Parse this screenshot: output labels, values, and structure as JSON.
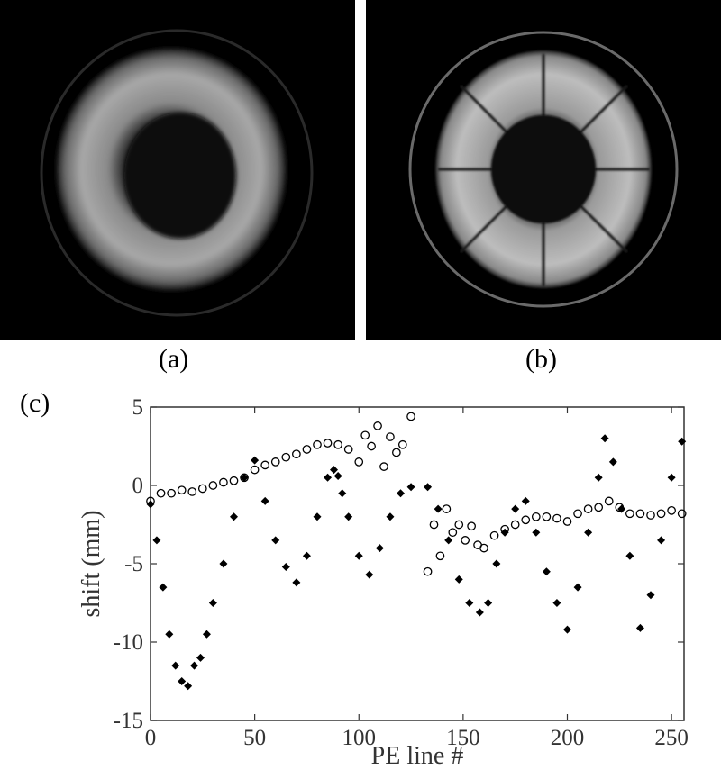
{
  "captions": {
    "a": "(a)",
    "b": "(b)",
    "c": "(c)"
  },
  "images": [
    {
      "label": "(a)",
      "description_icon": "blurred-mri-orange-cross-section-icon"
    },
    {
      "label": "(b)",
      "description_icon": "corrected-mri-orange-cross-section-icon"
    }
  ],
  "chart_data": {
    "type": "scatter",
    "title": "",
    "xlabel": "PE line #",
    "ylabel": "shift (mm)",
    "xlim": [
      0,
      256
    ],
    "ylim": [
      -15,
      5
    ],
    "xticks": [
      0,
      50,
      100,
      150,
      200,
      250
    ],
    "yticks": [
      -15,
      -10,
      -5,
      0,
      5
    ],
    "grid": false,
    "legend": "none",
    "series": [
      {
        "marker": "filled-diamond",
        "color": "#000000",
        "x": [
          0,
          3,
          6,
          9,
          12,
          15,
          18,
          21,
          24,
          27,
          30,
          35,
          40,
          45,
          50,
          55,
          60,
          65,
          70,
          75,
          80,
          85,
          88,
          90,
          92,
          95,
          100,
          105,
          110,
          115,
          120,
          125,
          133,
          138,
          143,
          148,
          153,
          158,
          162,
          166,
          170,
          175,
          180,
          185,
          190,
          195,
          200,
          205,
          210,
          215,
          218,
          222,
          226,
          230,
          235,
          240,
          245,
          250,
          255
        ],
        "y": [
          -1.2,
          -3.5,
          -6.5,
          -9.5,
          -11.5,
          -12.5,
          -12.8,
          -11.5,
          -11,
          -9.5,
          -7.5,
          -5,
          -2,
          0.5,
          1.6,
          -1,
          -3.5,
          -5.2,
          -6.2,
          -4.5,
          -2,
          0.5,
          1.0,
          0.6,
          -0.5,
          -2,
          -4.5,
          -5.7,
          -4,
          -2,
          -0.5,
          -0.1,
          -0.1,
          -1.5,
          -3.5,
          -6,
          -7.5,
          -8.1,
          -7.5,
          -5,
          -3,
          -1.5,
          -1.0,
          -3,
          -5.5,
          -7.5,
          -9.2,
          -6.5,
          -3,
          0.5,
          3.0,
          1.5,
          -1.5,
          -4.5,
          -9.1,
          -7,
          -3.5,
          0.5,
          2.8
        ]
      },
      {
        "marker": "open-circle",
        "color": "#000000",
        "x": [
          0,
          5,
          10,
          15,
          20,
          25,
          30,
          35,
          40,
          45,
          50,
          55,
          60,
          65,
          70,
          75,
          80,
          85,
          90,
          95,
          100,
          103,
          106,
          109,
          112,
          115,
          118,
          121,
          125,
          133,
          136,
          139,
          142,
          145,
          148,
          151,
          154,
          157,
          160,
          165,
          170,
          175,
          180,
          185,
          190,
          195,
          200,
          205,
          210,
          215,
          220,
          225,
          230,
          235,
          240,
          245,
          250,
          255
        ],
        "y": [
          -1.0,
          -0.5,
          -0.5,
          -0.3,
          -0.4,
          -0.2,
          0.0,
          0.2,
          0.3,
          0.5,
          1.0,
          1.3,
          1.5,
          1.8,
          2.0,
          2.3,
          2.6,
          2.7,
          2.6,
          2.3,
          1.5,
          3.2,
          2.5,
          3.8,
          1.2,
          3.1,
          2.1,
          2.6,
          4.4,
          -5.5,
          -2.5,
          -4.5,
          -1.5,
          -3,
          -2.5,
          -3.5,
          -2.6,
          -3.8,
          -4.0,
          -3.2,
          -2.8,
          -2.5,
          -2.2,
          -2.0,
          -2.0,
          -2.1,
          -2.3,
          -1.8,
          -1.5,
          -1.4,
          -1.0,
          -1.4,
          -1.8,
          -1.8,
          -1.9,
          -1.8,
          -1.6,
          -1.8
        ]
      }
    ]
  }
}
